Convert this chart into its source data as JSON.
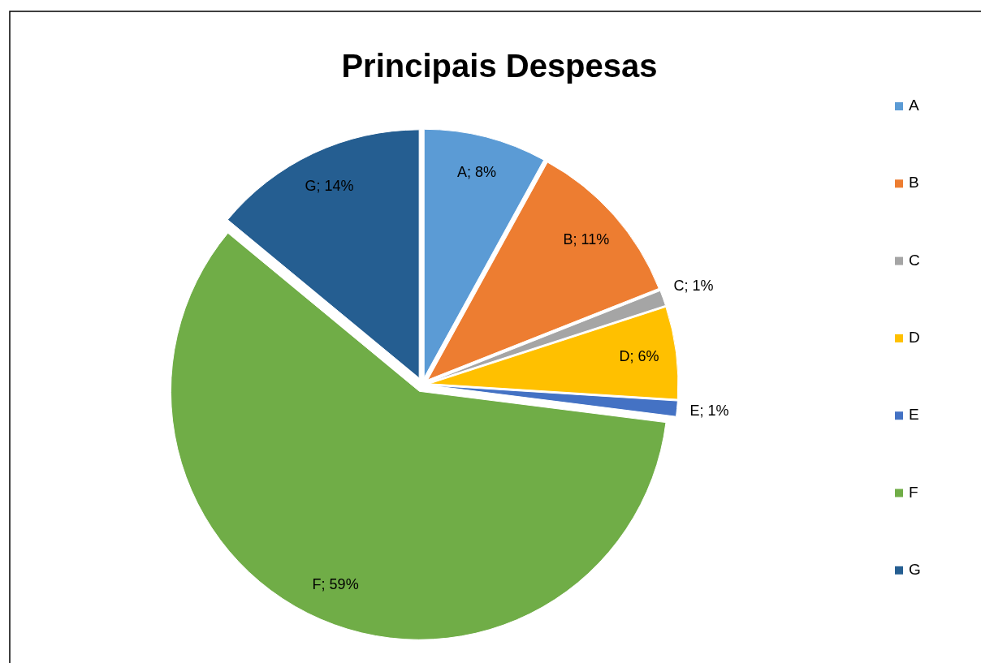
{
  "chart_data": {
    "type": "pie",
    "title": "Principais Despesas",
    "categories": [
      "A",
      "B",
      "C",
      "D",
      "E",
      "F",
      "G"
    ],
    "values": [
      8,
      11,
      1,
      6,
      1,
      59,
      14
    ],
    "value_labels": [
      "A; 8%",
      "B; 11%",
      "C; 1%",
      "D; 6%",
      "E; 1%",
      "F; 59%",
      "G; 14%"
    ],
    "colors": [
      "#5b9bd5",
      "#ed7d31",
      "#a5a5a5",
      "#ffc000",
      "#4472c4",
      "#70ad47",
      "#255e91"
    ],
    "legend": "right"
  }
}
